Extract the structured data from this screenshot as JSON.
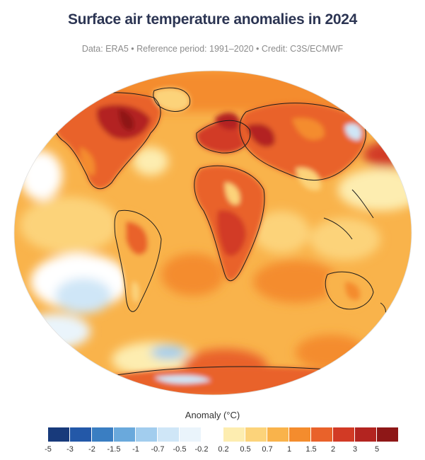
{
  "header": {
    "title": "Surface air temperature anomalies in 2024",
    "subtitle": "Data: ERA5 • Reference period: 1991–2020 • Credit: C3S/ECMWF"
  },
  "map": {
    "projection": "global",
    "variable": "surface air temperature anomaly",
    "year": 2024
  },
  "legend": {
    "title": "Anomaly (°C)",
    "ticks": [
      "-5",
      "-3",
      "-2",
      "-1.5",
      "-1",
      "-0.7",
      "-0.5",
      "-0.2",
      "0.2",
      "0.5",
      "0.7",
      "1",
      "1.5",
      "2",
      "3",
      "5"
    ],
    "cool_colors": [
      "#183a7b",
      "#2358a8",
      "#3a7ec2",
      "#6aa9dc",
      "#a2cdee",
      "#cfe6f7",
      "#eaf4fb"
    ],
    "warm_colors": [
      "#fdedb0",
      "#fcd37a",
      "#f9b34b",
      "#f48c2d",
      "#e9622a",
      "#d23a25",
      "#b32420",
      "#8e1717"
    ],
    "neutral_color": "#ffffff"
  }
}
